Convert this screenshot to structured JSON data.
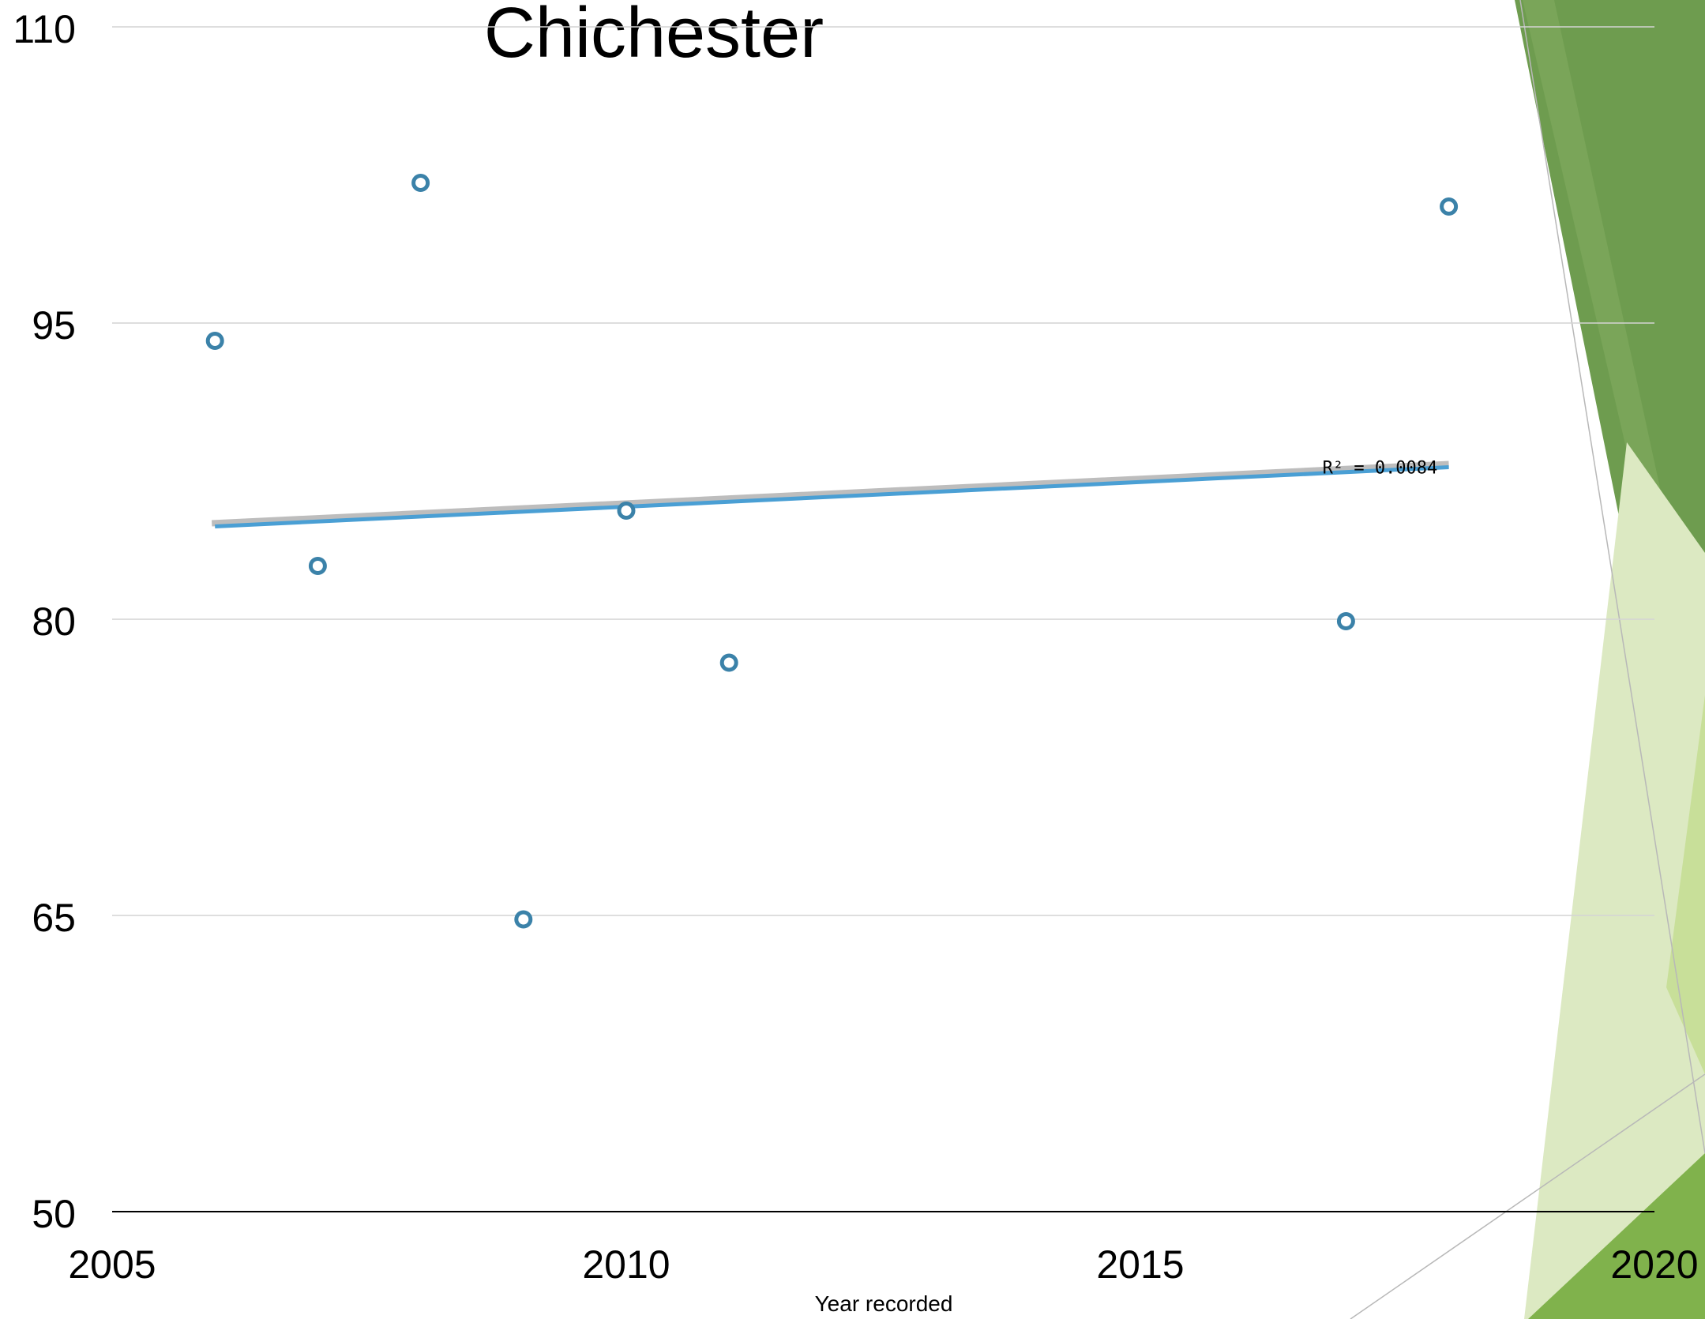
{
  "chart_data": {
    "type": "scatter",
    "title": "Chichester",
    "xlabel": "Year recorded",
    "ylabel": "",
    "xlim": [
      2005,
      2020
    ],
    "ylim": [
      50,
      110
    ],
    "x_ticks": [
      "2005",
      "2010",
      "2015",
      "2020"
    ],
    "y_ticks": [
      "50",
      "65",
      "80",
      "95",
      "110"
    ],
    "grid": true,
    "series": [
      {
        "points": [
          {
            "x": 2006,
            "y": 94.1
          },
          {
            "x": 2007,
            "y": 82.7
          },
          {
            "x": 2008,
            "y": 102.1
          },
          {
            "x": 2009,
            "y": 64.8
          },
          {
            "x": 2010,
            "y": 85.5
          },
          {
            "x": 2011,
            "y": 77.8
          },
          {
            "x": 2017,
            "y": 79.9
          },
          {
            "x": 2018,
            "y": 100.9
          }
        ],
        "marker": "hollow-circle",
        "color": "#3b82a9"
      }
    ],
    "trendline": {
      "type": "linear",
      "start": {
        "x": 2006,
        "y": 84.7
      },
      "end": {
        "x": 2018,
        "y": 87.7
      },
      "color": "#4a9fd4",
      "r_squared_label": "R² = 0.0084"
    }
  },
  "theme": {
    "decor_dark": "#6e9c4f",
    "decor_mid": "#80b24c",
    "decor_light": "#dce9c2",
    "decor_pale": "#c8df99",
    "grid_color": "#d4d4d4",
    "axis_color": "#000000"
  }
}
